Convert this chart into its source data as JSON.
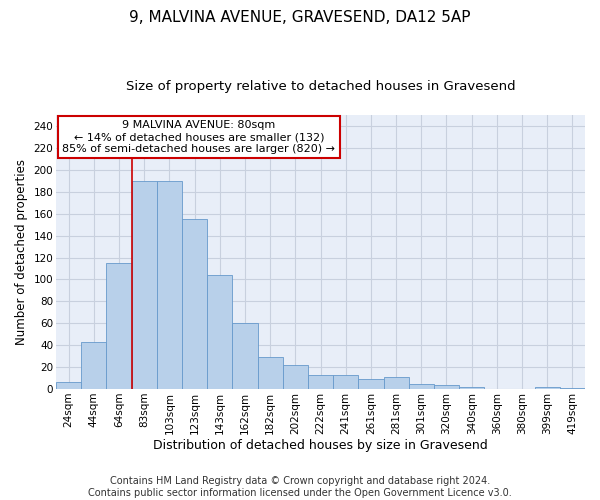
{
  "title1": "9, MALVINA AVENUE, GRAVESEND, DA12 5AP",
  "title2": "Size of property relative to detached houses in Gravesend",
  "xlabel": "Distribution of detached houses by size in Gravesend",
  "ylabel": "Number of detached properties",
  "categories": [
    "24sqm",
    "44sqm",
    "64sqm",
    "83sqm",
    "103sqm",
    "123sqm",
    "143sqm",
    "162sqm",
    "182sqm",
    "202sqm",
    "222sqm",
    "241sqm",
    "261sqm",
    "281sqm",
    "301sqm",
    "320sqm",
    "340sqm",
    "360sqm",
    "380sqm",
    "399sqm",
    "419sqm"
  ],
  "values": [
    6,
    43,
    115,
    190,
    190,
    155,
    104,
    60,
    29,
    22,
    13,
    13,
    9,
    11,
    5,
    4,
    2,
    0,
    0,
    2,
    1
  ],
  "bar_color": "#b8d0ea",
  "bar_edge_color": "#6699cc",
  "vline_color": "#cc0000",
  "vline_index": 3,
  "annotation_text": "9 MALVINA AVENUE: 80sqm\n← 14% of detached houses are smaller (132)\n85% of semi-detached houses are larger (820) →",
  "annotation_box_color": "white",
  "annotation_box_edge_color": "#cc0000",
  "ylim": [
    0,
    250
  ],
  "yticks": [
    0,
    20,
    40,
    60,
    80,
    100,
    120,
    140,
    160,
    180,
    200,
    220,
    240
  ],
  "grid_color": "#c8d0de",
  "background_color": "#e8eef8",
  "footnote": "Contains HM Land Registry data © Crown copyright and database right 2024.\nContains public sector information licensed under the Open Government Licence v3.0.",
  "title1_fontsize": 11,
  "title2_fontsize": 9.5,
  "xlabel_fontsize": 9,
  "ylabel_fontsize": 8.5,
  "tick_fontsize": 7.5,
  "annotation_fontsize": 8,
  "footnote_fontsize": 7
}
